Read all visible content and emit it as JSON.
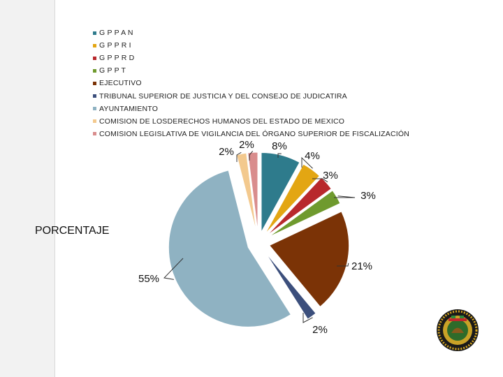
{
  "chart_data": {
    "type": "pie",
    "title": "PORCENTAJE",
    "legend_position": "top",
    "slices": [
      {
        "name": "G P P A N",
        "value": 8,
        "label": "8%",
        "color": "#2e7b8c"
      },
      {
        "name": "G P P R I",
        "value": 4,
        "label": "4%",
        "color": "#e3a613"
      },
      {
        "name": "G P P R D",
        "value": 3,
        "label": "3%",
        "color": "#b8282c"
      },
      {
        "name": "G P P T",
        "value": 3,
        "label": "3%",
        "color": "#6f9a2e"
      },
      {
        "name": "EJECUTIVO",
        "value": 21,
        "label": "21%",
        "color": "#7b3306"
      },
      {
        "name": "TRIBUNAL SUPERIOR DE JUSTICIA Y DEL CONSEJO DE JUDICATIRA",
        "value": 2,
        "label": "2%",
        "color": "#3c4f7c"
      },
      {
        "name": "AYUNTAMIENTO",
        "value": 55,
        "label": "55%",
        "color": "#8fb2c2"
      },
      {
        "name": "COMISION DE LOSDERECHOS HUMANOS DEL ESTADO DE MEXICO",
        "value": 2,
        "label": "2%",
        "color": "#f3c98e"
      },
      {
        "name": "COMISION LEGISLATIVA DE VIGILANCIA DEL ÓRGANO SUPERIOR DE FISCALIZACIÓN",
        "value": 2,
        "label": "2%",
        "color": "#d98d8d"
      }
    ]
  },
  "logo": {
    "name": "seal-logo"
  }
}
